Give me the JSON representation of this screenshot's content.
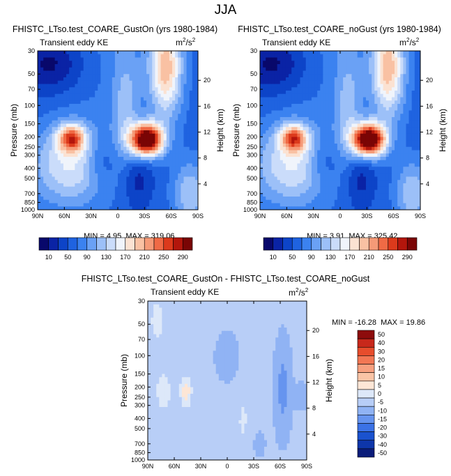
{
  "page_title": "JJA",
  "palette": {
    "abs": [
      "#08086b",
      "#0a23a5",
      "#0d44c8",
      "#1f63e0",
      "#3b82f0",
      "#6aa1f5",
      "#9cc0f8",
      "#cadcfa",
      "#f0f4fb",
      "#fbe2d2",
      "#f9c1a3",
      "#f59a77",
      "#f06a45",
      "#dc3a1c",
      "#b3160c",
      "#7a0505"
    ],
    "diff": [
      "#0a1c7a",
      "#0e36aa",
      "#1a52cf",
      "#3b72e6",
      "#6694ef",
      "#90b3f4",
      "#b8cef7",
      "#dde8f9",
      "#fde6d6",
      "#fac4a6",
      "#f7a07f",
      "#f27754",
      "#e74d2c",
      "#c8281b",
      "#8d0c0c"
    ]
  },
  "chart_data": [
    {
      "type": "heatmap",
      "title": "FHISTC_LTso.test_COARE_GustOn (yrs 1980-1984)",
      "left_label": "Transient eddy KE",
      "unit_base": "m",
      "unit_exp": "2",
      "unit_sep": "/s",
      "unit_exp2": "2",
      "ylabel": "Pressure (mb)",
      "y2label": "Height (km)",
      "x_ticks": [
        "90N",
        "60N",
        "30N",
        "0",
        "30S",
        "60S",
        "90S"
      ],
      "y_ticks": [
        "30",
        "50",
        "70",
        "100",
        "150",
        "200",
        "250",
        "300",
        "400",
        "500",
        "700",
        "850",
        "1000"
      ],
      "y2_ticks": [
        "20",
        "16",
        "12",
        "8",
        "4"
      ],
      "min_label": "MIN =",
      "min_value": "4.95",
      "max_label": "MAX =",
      "max_value": "319.06",
      "colorbar_labels": [
        "10",
        "50",
        "90",
        "130",
        "170",
        "210",
        "250",
        "290"
      ],
      "peak_north": 0.62,
      "peak_south": 0.98
    },
    {
      "type": "heatmap",
      "title": "FHISTC_LTso.test_COARE_noGust (yrs 1980-1984)",
      "left_label": "Transient eddy KE",
      "unit_base": "m",
      "unit_exp": "2",
      "unit_sep": "/s",
      "unit_exp2": "2",
      "ylabel": "Pressure (mb)",
      "y2label": "Height (km)",
      "x_ticks": [
        "90N",
        "60N",
        "30N",
        "0",
        "30S",
        "60S",
        "90S"
      ],
      "y_ticks": [
        "30",
        "50",
        "70",
        "100",
        "150",
        "200",
        "250",
        "300",
        "400",
        "500",
        "700",
        "850",
        "1000"
      ],
      "y2_ticks": [
        "20",
        "16",
        "12",
        "8",
        "4"
      ],
      "min_label": "MIN =",
      "min_value": "3.91",
      "max_label": "MAX =",
      "max_value": "325.42",
      "colorbar_labels": [
        "10",
        "50",
        "90",
        "130",
        "170",
        "210",
        "250",
        "290"
      ],
      "peak_north": 0.6,
      "peak_south": 1.0
    },
    {
      "type": "heatmap",
      "title": "FHISTC_LTso.test_COARE_GustOn - FHISTC_LTso.test_COARE_noGust",
      "left_label": "Transient eddy KE",
      "unit_base": "m",
      "unit_exp": "2",
      "unit_sep": "/s",
      "unit_exp2": "2",
      "ylabel": "Pressure (mb)",
      "y2label": "Height (km)",
      "x_ticks": [
        "90N",
        "60N",
        "30N",
        "0",
        "30S",
        "60S",
        "90S"
      ],
      "y_ticks": [
        "30",
        "50",
        "70",
        "100",
        "150",
        "200",
        "250",
        "300",
        "400",
        "500",
        "700",
        "850",
        "1000"
      ],
      "y2_ticks": [
        "20",
        "16",
        "12",
        "8",
        "4"
      ],
      "min_label": "MIN =",
      "min_value": "-16.28",
      "max_label": "MAX =",
      "max_value": "19.86",
      "colorbar_labels": [
        "50",
        "40",
        "30",
        "20",
        "15",
        "10",
        "5",
        "0",
        "-5",
        "-10",
        "-15",
        "-20",
        "-30",
        "-40",
        "-50"
      ]
    }
  ]
}
